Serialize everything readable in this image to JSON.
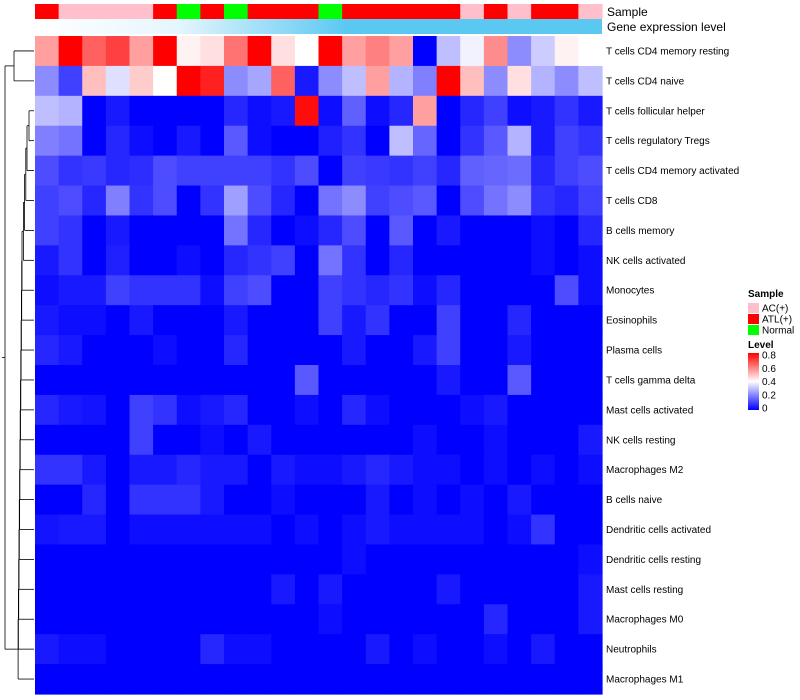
{
  "chart_data": {
    "type": "heatmap",
    "title": "",
    "annotation_tracks": [
      {
        "name": "Sample",
        "type": "categorical",
        "values": [
          "ATL(+)",
          "AC(+)",
          "AC(+)",
          "AC(+)",
          "AC(+)",
          "ATL(+)",
          "Normal",
          "ATL(+)",
          "Normal",
          "ATL(+)",
          "ATL(+)",
          "ATL(+)",
          "Normal",
          "ATL(+)",
          "ATL(+)",
          "ATL(+)",
          "ATL(+)",
          "ATL(+)",
          "AC(+)",
          "ATL(+)",
          "AC(+)",
          "ATL(+)",
          "ATL(+)",
          "AC(+)"
        ]
      },
      {
        "name": "Gene expression level",
        "type": "gradient",
        "value": "constant"
      }
    ],
    "rows": [
      "T cells CD4 memory resting",
      "T cells CD4 naive",
      "T cells follicular helper",
      "T cells regulatory  Tregs",
      "T cells CD4 memory activated",
      "T cells CD8",
      "B cells memory",
      "NK cells activated",
      "Monocytes",
      "Eosinophils",
      "Plasma cells",
      "T cells gamma delta",
      "Mast cells activated",
      "NK cells resting",
      "Macrophages M2",
      "B cells naive",
      "Dendritic cells activated",
      "Dendritic cells resting",
      "Mast cells resting",
      "Macrophages M0",
      "Neutrophils",
      "Macrophages M1"
    ],
    "values": [
      [
        0.55,
        0.8,
        0.65,
        0.7,
        0.55,
        0.8,
        0.42,
        0.45,
        0.62,
        0.8,
        0.45,
        0.4,
        0.8,
        0.55,
        0.6,
        0.55,
        0.0,
        0.3,
        0.38,
        0.58,
        0.22,
        0.32,
        0.42,
        0.4
      ],
      [
        0.22,
        0.1,
        0.5,
        0.35,
        0.48,
        0.4,
        0.8,
        0.75,
        0.22,
        0.26,
        0.65,
        0.04,
        0.22,
        0.3,
        0.55,
        0.28,
        0.2,
        0.8,
        0.5,
        0.22,
        0.45,
        0.28,
        0.22,
        0.3
      ],
      [
        0.3,
        0.28,
        0.0,
        0.04,
        0.0,
        0.0,
        0.0,
        0.0,
        0.06,
        0.02,
        0.04,
        0.78,
        0.02,
        0.15,
        0.02,
        0.06,
        0.55,
        0.0,
        0.06,
        0.1,
        0.02,
        0.04,
        0.08,
        0.04
      ],
      [
        0.2,
        0.18,
        0.0,
        0.06,
        0.02,
        0.0,
        0.04,
        0.0,
        0.14,
        0.02,
        0.0,
        0.0,
        0.05,
        0.08,
        0.0,
        0.3,
        0.16,
        0.0,
        0.08,
        0.14,
        0.28,
        0.04,
        0.1,
        0.08
      ],
      [
        0.12,
        0.08,
        0.09,
        0.06,
        0.07,
        0.12,
        0.1,
        0.1,
        0.1,
        0.1,
        0.08,
        0.12,
        0.0,
        0.1,
        0.09,
        0.08,
        0.1,
        0.06,
        0.15,
        0.16,
        0.17,
        0.06,
        0.1,
        0.12
      ],
      [
        0.1,
        0.12,
        0.06,
        0.2,
        0.08,
        0.12,
        0.0,
        0.08,
        0.25,
        0.12,
        0.06,
        0.0,
        0.18,
        0.22,
        0.1,
        0.12,
        0.14,
        0.0,
        0.12,
        0.18,
        0.22,
        0.08,
        0.06,
        0.1
      ],
      [
        0.1,
        0.08,
        0.0,
        0.04,
        0.0,
        0.0,
        0.0,
        0.0,
        0.18,
        0.06,
        0.0,
        0.02,
        0.06,
        0.12,
        0.0,
        0.14,
        0.0,
        0.04,
        0.0,
        0.0,
        0.0,
        0.02,
        0.0,
        0.06
      ],
      [
        0.04,
        0.08,
        0.0,
        0.05,
        0.0,
        0.0,
        0.02,
        0.0,
        0.06,
        0.08,
        0.1,
        0.0,
        0.18,
        0.08,
        0.0,
        0.06,
        0.0,
        0.0,
        0.0,
        0.0,
        0.0,
        0.02,
        0.0,
        0.02
      ],
      [
        0.02,
        0.04,
        0.04,
        0.1,
        0.08,
        0.08,
        0.08,
        0.02,
        0.1,
        0.12,
        0.0,
        0.0,
        0.1,
        0.08,
        0.06,
        0.08,
        0.02,
        0.06,
        0.0,
        0.0,
        0.0,
        0.0,
        0.12,
        0.02
      ],
      [
        0.04,
        0.02,
        0.02,
        0.0,
        0.04,
        0.0,
        0.0,
        0.0,
        0.04,
        0.0,
        0.0,
        0.0,
        0.1,
        0.04,
        0.08,
        0.0,
        0.0,
        0.1,
        0.0,
        0.0,
        0.06,
        0.0,
        0.0,
        0.0
      ],
      [
        0.06,
        0.04,
        0.0,
        0.0,
        0.0,
        0.02,
        0.0,
        0.0,
        0.06,
        0.0,
        0.0,
        0.0,
        0.0,
        0.04,
        0.0,
        0.0,
        0.04,
        0.1,
        0.0,
        0.0,
        0.04,
        0.0,
        0.0,
        0.0
      ],
      [
        0.0,
        0.0,
        0.0,
        0.0,
        0.0,
        0.0,
        0.0,
        0.0,
        0.0,
        0.0,
        0.0,
        0.14,
        0.0,
        0.0,
        0.0,
        0.0,
        0.0,
        0.04,
        0.0,
        0.0,
        0.14,
        0.0,
        0.0,
        0.0
      ],
      [
        0.06,
        0.04,
        0.03,
        0.0,
        0.1,
        0.08,
        0.02,
        0.04,
        0.06,
        0.0,
        0.0,
        0.02,
        0.0,
        0.06,
        0.02,
        0.0,
        0.0,
        0.0,
        0.02,
        0.04,
        0.0,
        0.0,
        0.0,
        0.0
      ],
      [
        0.0,
        0.0,
        0.0,
        0.0,
        0.1,
        0.0,
        0.0,
        0.02,
        0.0,
        0.04,
        0.0,
        0.0,
        0.0,
        0.0,
        0.0,
        0.0,
        0.02,
        0.0,
        0.0,
        0.02,
        0.0,
        0.0,
        0.0,
        0.04
      ],
      [
        0.08,
        0.08,
        0.04,
        0.0,
        0.04,
        0.04,
        0.06,
        0.04,
        0.04,
        0.0,
        0.04,
        0.02,
        0.02,
        0.04,
        0.06,
        0.04,
        0.02,
        0.02,
        0.0,
        0.02,
        0.0,
        0.02,
        0.0,
        0.02
      ],
      [
        0.0,
        0.0,
        0.06,
        0.0,
        0.08,
        0.08,
        0.08,
        0.04,
        0.0,
        0.0,
        0.02,
        0.0,
        0.0,
        0.0,
        0.04,
        0.0,
        0.02,
        0.0,
        0.02,
        0.0,
        0.04,
        0.0,
        0.0,
        0.0
      ],
      [
        0.03,
        0.04,
        0.04,
        0.0,
        0.02,
        0.02,
        0.02,
        0.02,
        0.02,
        0.02,
        0.0,
        0.02,
        0.0,
        0.02,
        0.04,
        0.02,
        0.02,
        0.02,
        0.02,
        0.0,
        0.02,
        0.08,
        0.0,
        0.0
      ],
      [
        0.0,
        0.0,
        0.0,
        0.0,
        0.0,
        0.0,
        0.0,
        0.0,
        0.0,
        0.0,
        0.0,
        0.0,
        0.0,
        0.02,
        0.0,
        0.0,
        0.0,
        0.0,
        0.0,
        0.0,
        0.0,
        0.0,
        0.0,
        0.02
      ],
      [
        0.0,
        0.0,
        0.0,
        0.0,
        0.0,
        0.0,
        0.0,
        0.0,
        0.0,
        0.0,
        0.04,
        0.0,
        0.04,
        0.0,
        0.0,
        0.0,
        0.0,
        0.04,
        0.0,
        0.0,
        0.0,
        0.0,
        0.0,
        0.04
      ],
      [
        0.0,
        0.0,
        0.0,
        0.0,
        0.0,
        0.0,
        0.0,
        0.0,
        0.0,
        0.0,
        0.0,
        0.0,
        0.02,
        0.0,
        0.0,
        0.0,
        0.0,
        0.0,
        0.0,
        0.06,
        0.0,
        0.0,
        0.0,
        0.04
      ],
      [
        0.04,
        0.02,
        0.02,
        0.0,
        0.0,
        0.0,
        0.0,
        0.06,
        0.02,
        0.02,
        0.0,
        0.0,
        0.0,
        0.0,
        0.04,
        0.0,
        0.02,
        0.0,
        0.0,
        0.02,
        0.0,
        0.04,
        0.0,
        0.0
      ],
      [
        0.0,
        0.0,
        0.0,
        0.0,
        0.0,
        0.0,
        0.0,
        0.0,
        0.0,
        0.0,
        0.0,
        0.0,
        0.0,
        0.0,
        0.0,
        0.0,
        0.0,
        0.0,
        0.0,
        0.0,
        0.0,
        0.0,
        0.0,
        0.0
      ]
    ],
    "color_scale": {
      "min": 0,
      "mid": 0.4,
      "max": 0.8,
      "low_color": "#0000FF",
      "mid_color": "#FFFFFF",
      "high_color": "#FF0000"
    },
    "row_dendrogram": true,
    "legends": [
      {
        "title": "Sample",
        "items": [
          {
            "label": "AC(+)",
            "color": "#FFC0CB"
          },
          {
            "label": "ATL(+)",
            "color": "#FF0000"
          },
          {
            "label": "Normal",
            "color": "#00FF00"
          }
        ]
      },
      {
        "title": "Level",
        "ticks": [
          "0.8",
          "0.6",
          "0.4",
          "0.2",
          "0"
        ]
      }
    ],
    "colors": {
      "annotation_gradient": "#5BC8F2"
    }
  }
}
